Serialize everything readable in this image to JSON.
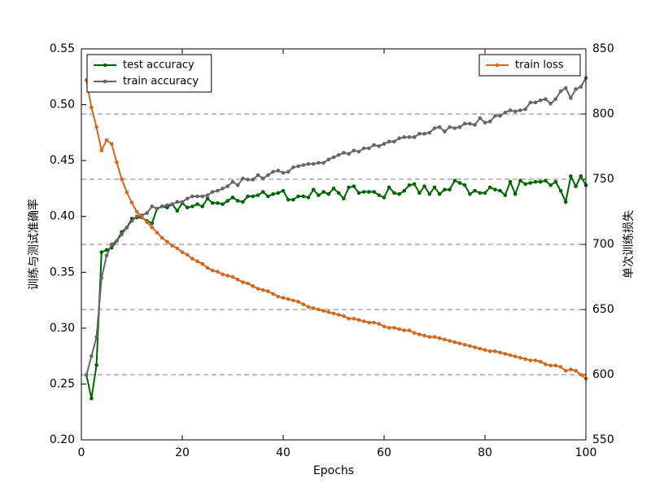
{
  "chart_data": {
    "type": "line",
    "xlabel": "Epochs",
    "ylabel": "训练与测试准确率",
    "y2label": "单次训练损失",
    "x": [
      1,
      2,
      3,
      4,
      5,
      6,
      7,
      8,
      9,
      10,
      11,
      12,
      13,
      14,
      15,
      16,
      17,
      18,
      19,
      20,
      21,
      22,
      23,
      24,
      25,
      26,
      27,
      28,
      29,
      30,
      31,
      32,
      33,
      34,
      35,
      36,
      37,
      38,
      39,
      40,
      41,
      42,
      43,
      44,
      45,
      46,
      47,
      48,
      49,
      50,
      51,
      52,
      53,
      54,
      55,
      56,
      57,
      58,
      59,
      60,
      61,
      62,
      63,
      64,
      65,
      66,
      67,
      68,
      69,
      70,
      71,
      72,
      73,
      74,
      75,
      76,
      77,
      78,
      79,
      80,
      81,
      82,
      83,
      84,
      85,
      86,
      87,
      88,
      89,
      90,
      91,
      92,
      93,
      94,
      95,
      96,
      97,
      98,
      99,
      100
    ],
    "series": [
      {
        "name": "test accuracy",
        "color": "#006400",
        "values": [
          0.258,
          0.237,
          0.267,
          0.368,
          0.37,
          0.372,
          0.378,
          0.386,
          0.39,
          0.398,
          0.399,
          0.399,
          0.396,
          0.394,
          0.407,
          0.409,
          0.408,
          0.411,
          0.405,
          0.412,
          0.408,
          0.409,
          0.411,
          0.409,
          0.416,
          0.412,
          0.412,
          0.411,
          0.414,
          0.417,
          0.414,
          0.413,
          0.418,
          0.418,
          0.419,
          0.422,
          0.418,
          0.42,
          0.421,
          0.423,
          0.415,
          0.415,
          0.418,
          0.418,
          0.417,
          0.424,
          0.419,
          0.422,
          0.42,
          0.425,
          0.421,
          0.416,
          0.426,
          0.427,
          0.421,
          0.422,
          0.422,
          0.422,
          0.419,
          0.417,
          0.426,
          0.421,
          0.42,
          0.423,
          0.428,
          0.429,
          0.421,
          0.427,
          0.42,
          0.426,
          0.42,
          0.424,
          0.424,
          0.432,
          0.43,
          0.428,
          0.42,
          0.423,
          0.421,
          0.421,
          0.426,
          0.424,
          0.423,
          0.419,
          0.431,
          0.42,
          0.432,
          0.429,
          0.43,
          0.431,
          0.431,
          0.432,
          0.428,
          0.431,
          0.423,
          0.413,
          0.436,
          0.427,
          0.436,
          0.428
        ]
      },
      {
        "name": "train accuracy",
        "color": "#666666",
        "values": [
          0.258,
          0.275,
          0.292,
          0.345,
          0.365,
          0.375,
          0.378,
          0.384,
          0.39,
          0.396,
          0.4,
          0.401,
          0.403,
          0.409,
          0.407,
          0.409,
          0.41,
          0.411,
          0.413,
          0.413,
          0.416,
          0.418,
          0.418,
          0.418,
          0.419,
          0.422,
          0.423,
          0.425,
          0.427,
          0.431,
          0.428,
          0.434,
          0.433,
          0.433,
          0.437,
          0.434,
          0.437,
          0.44,
          0.441,
          0.439,
          0.44,
          0.444,
          0.445,
          0.446,
          0.447,
          0.447,
          0.448,
          0.448,
          0.451,
          0.453,
          0.455,
          0.457,
          0.456,
          0.459,
          0.458,
          0.461,
          0.461,
          0.464,
          0.463,
          0.465,
          0.467,
          0.467,
          0.47,
          0.471,
          0.471,
          0.471,
          0.474,
          0.474,
          0.475,
          0.479,
          0.48,
          0.476,
          0.48,
          0.479,
          0.48,
          0.483,
          0.483,
          0.482,
          0.488,
          0.484,
          0.485,
          0.49,
          0.49,
          0.493,
          0.495,
          0.494,
          0.495,
          0.496,
          0.502,
          0.502,
          0.504,
          0.505,
          0.501,
          0.505,
          0.512,
          0.515,
          0.506,
          0.514,
          0.516,
          0.524
        ]
      },
      {
        "name": "train loss",
        "color": "#d2691e",
        "axis": "y2",
        "values": [
          826,
          805,
          790,
          772,
          780,
          777,
          763,
          750,
          740,
          732,
          725,
          721,
          717,
          713,
          709,
          705,
          702,
          699,
          697,
          694,
          692,
          689,
          687,
          685,
          682,
          680,
          679,
          677,
          676,
          675,
          673,
          671,
          670,
          668,
          666,
          665,
          664,
          662,
          660,
          659,
          658,
          657,
          656,
          654,
          652,
          651,
          650,
          649,
          648,
          647,
          646,
          645,
          643,
          643,
          642,
          641,
          640,
          640,
          639,
          637,
          636,
          636,
          635,
          634,
          634,
          632,
          631,
          630,
          629,
          629,
          628,
          627,
          626,
          625,
          624,
          623,
          622,
          621,
          620,
          619,
          618,
          618,
          617,
          616,
          615,
          614,
          613,
          612,
          611,
          611,
          610,
          608,
          607,
          607,
          606,
          603,
          604,
          603,
          600,
          597
        ]
      }
    ],
    "xlim": [
      0,
      100
    ],
    "xticks": [
      0,
      20,
      40,
      60,
      80,
      100
    ],
    "ylim": [
      0.2,
      0.55
    ],
    "yticks": [
      {
        "value": 0.2,
        "label": "0.20"
      },
      0.25,
      {
        "value": 0.3,
        "label": "0.30"
      },
      0.35,
      {
        "value": 0.4,
        "label": "0.40"
      },
      0.45,
      {
        "value": 0.5,
        "label": "0.50"
      },
      0.55
    ],
    "y2lim": [
      550,
      850
    ],
    "y2ticks": [
      550,
      600,
      650,
      700,
      750,
      800,
      850
    ],
    "grid": "y2",
    "legend": "upper left",
    "legend2": "upper right"
  }
}
